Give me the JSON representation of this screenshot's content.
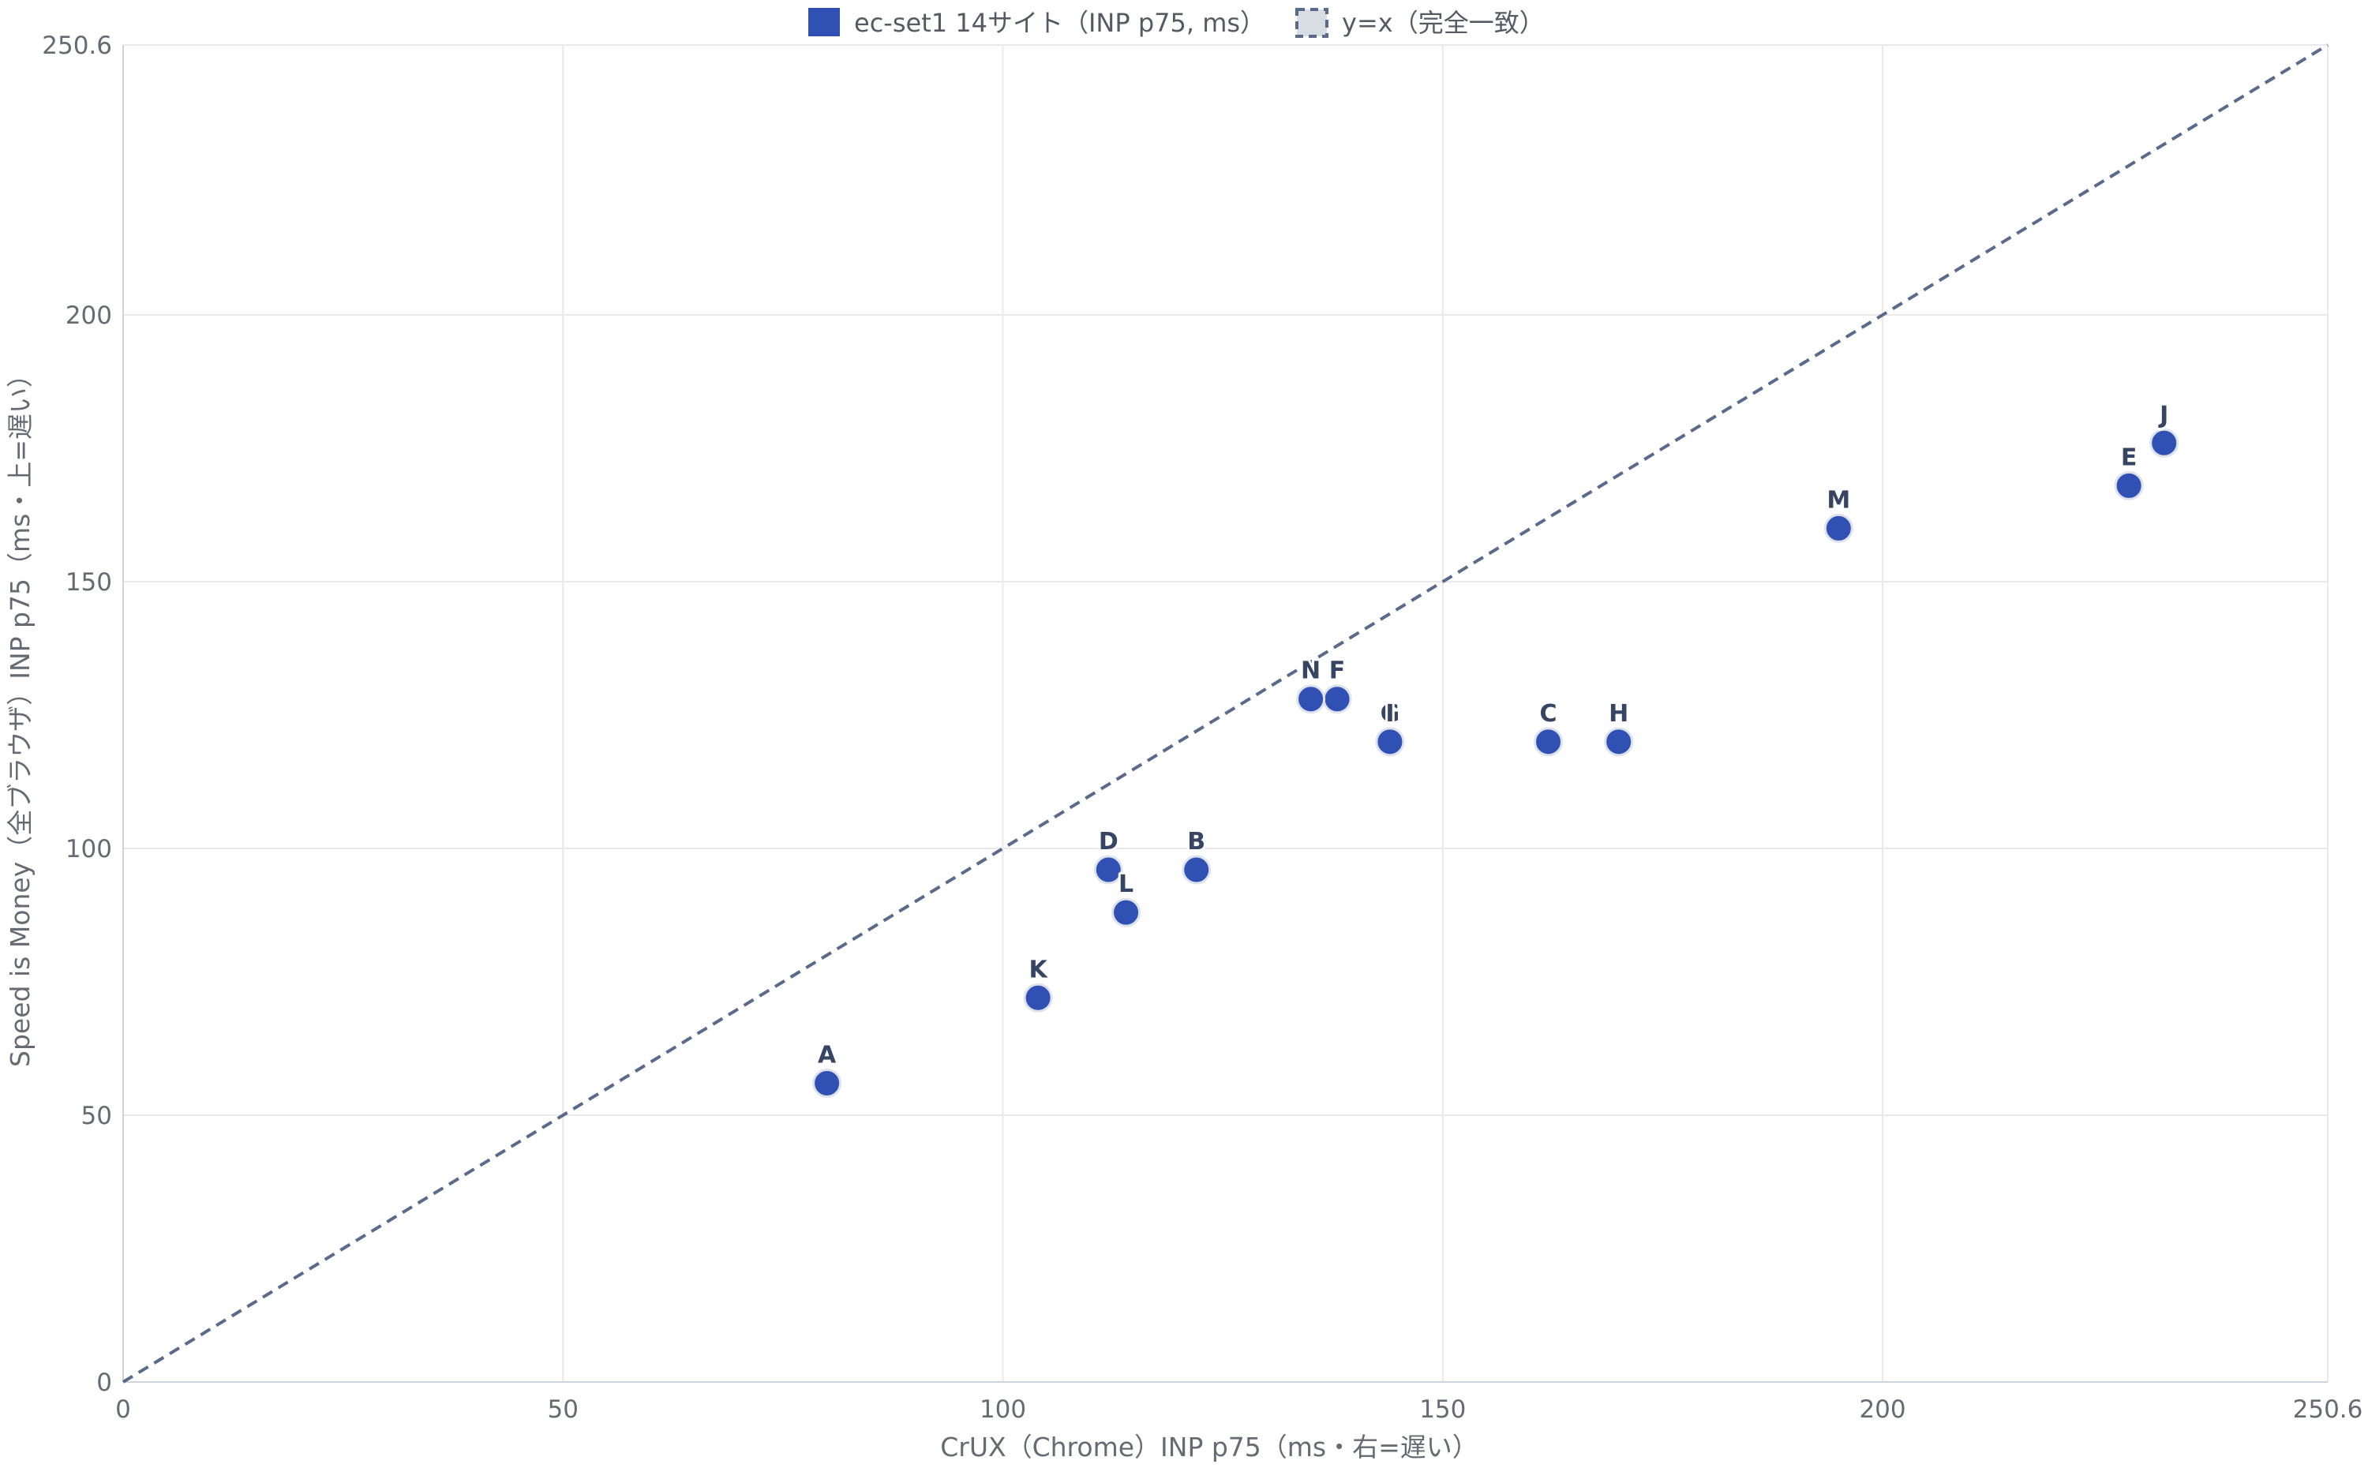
{
  "chart_data": {
    "type": "scatter",
    "title": "",
    "xlabel": "CrUX（Chrome）INP p75（ms・右=遅い）",
    "ylabel": "Speed is Money（全ブラウザ）INP p75（ms・上=遅い）",
    "xlim": [
      0,
      250.6
    ],
    "ylim": [
      0,
      250.6
    ],
    "x_ticks": [
      "0",
      "50",
      "100",
      "150",
      "200",
      "250.6"
    ],
    "y_ticks": [
      "0",
      "50",
      "100",
      "150",
      "200",
      "250.6"
    ],
    "grid": true,
    "legend_position": "top-center",
    "series": [
      {
        "name": "ec-set1 14サイト（INP p75, ms）",
        "color": "#3050b4",
        "points": [
          {
            "label": "A",
            "x": 80,
            "y": 56
          },
          {
            "label": "B",
            "x": 122,
            "y": 96
          },
          {
            "label": "C",
            "x": 162,
            "y": 120
          },
          {
            "label": "D",
            "x": 112,
            "y": 96
          },
          {
            "label": "E",
            "x": 228,
            "y": 168
          },
          {
            "label": "F",
            "x": 138,
            "y": 128
          },
          {
            "label": "G",
            "x": 144,
            "y": 120
          },
          {
            "label": "H",
            "x": 170,
            "y": 120
          },
          {
            "label": "I",
            "x": 144,
            "y": 120
          },
          {
            "label": "J",
            "x": 232,
            "y": 176
          },
          {
            "label": "K",
            "x": 104,
            "y": 72
          },
          {
            "label": "L",
            "x": 114,
            "y": 88
          },
          {
            "label": "M",
            "x": 195,
            "y": 160
          },
          {
            "label": "N",
            "x": 135,
            "y": 128
          }
        ]
      },
      {
        "name": "y=x（完全一致）",
        "color": "#5a6a8a",
        "line_style": "dashed",
        "line": [
          [
            0,
            0
          ],
          [
            250.6,
            250.6
          ]
        ]
      }
    ]
  }
}
